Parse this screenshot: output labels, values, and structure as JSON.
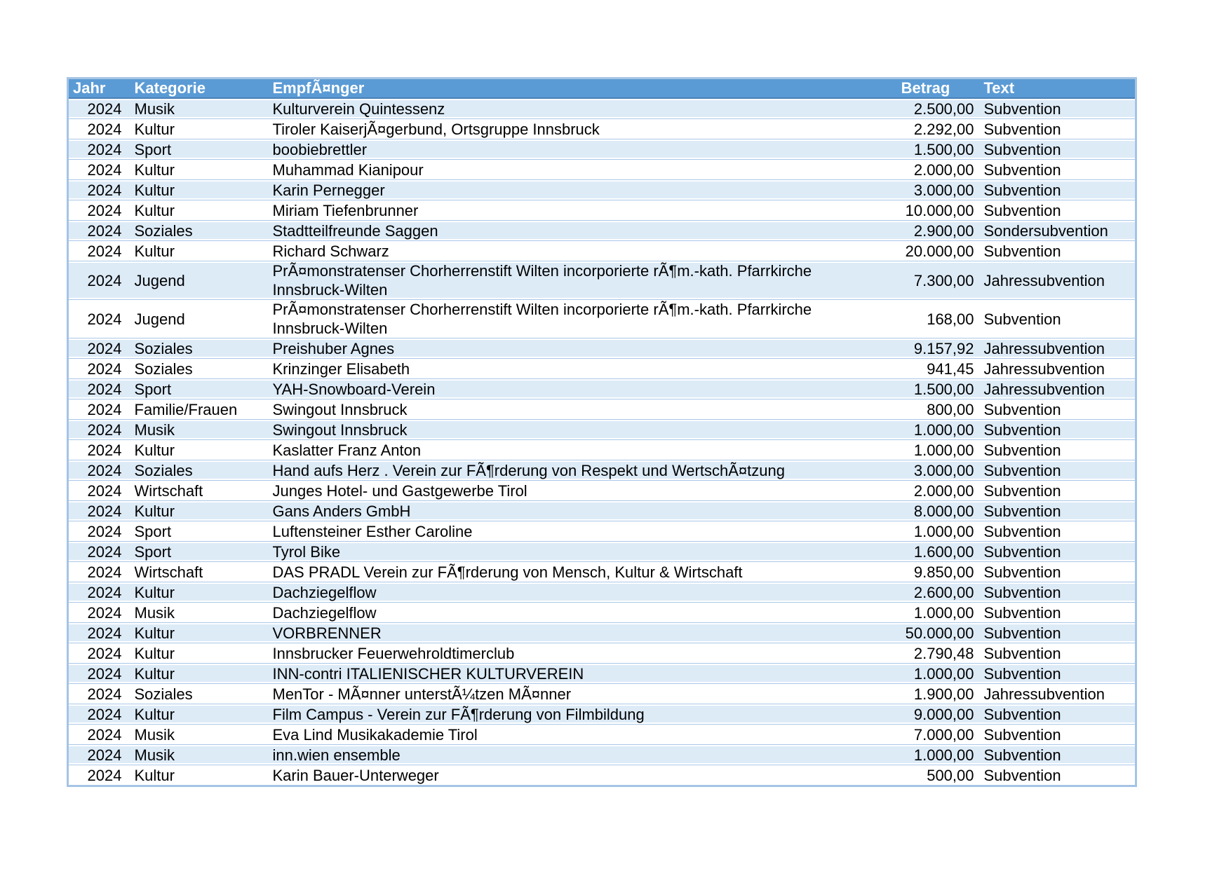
{
  "table": {
    "columns": [
      {
        "key": "jahr",
        "label": "Jahr"
      },
      {
        "key": "kategorie",
        "label": "Kategorie"
      },
      {
        "key": "empfaenger",
        "label": "EmpfÃ¤nger"
      },
      {
        "key": "betrag",
        "label": "Betrag"
      },
      {
        "key": "text",
        "label": "Text"
      }
    ],
    "rows": [
      {
        "jahr": "2024",
        "kategorie": "Musik",
        "empfaenger": "Kulturverein Quintessenz",
        "betrag": "2.500,00",
        "text": "Subvention"
      },
      {
        "jahr": "2024",
        "kategorie": "Kultur",
        "empfaenger": "Tiroler KaiserjÃ¤gerbund, Ortsgruppe Innsbruck",
        "betrag": "2.292,00",
        "text": "Subvention"
      },
      {
        "jahr": "2024",
        "kategorie": "Sport",
        "empfaenger": "boobiebrettler",
        "betrag": "1.500,00",
        "text": "Subvention"
      },
      {
        "jahr": "2024",
        "kategorie": "Kultur",
        "empfaenger": "Muhammad Kianipour",
        "betrag": "2.000,00",
        "text": "Subvention"
      },
      {
        "jahr": "2024",
        "kategorie": "Kultur",
        "empfaenger": "Karin Pernegger",
        "betrag": "3.000,00",
        "text": "Subvention"
      },
      {
        "jahr": "2024",
        "kategorie": "Kultur",
        "empfaenger": "Miriam Tiefenbrunner",
        "betrag": "10.000,00",
        "text": "Subvention"
      },
      {
        "jahr": "2024",
        "kategorie": "Soziales",
        "empfaenger": "Stadtteilfreunde Saggen",
        "betrag": "2.900,00",
        "text": "Sondersubvention"
      },
      {
        "jahr": "2024",
        "kategorie": "Kultur",
        "empfaenger": "Richard Schwarz",
        "betrag": "20.000,00",
        "text": "Subvention"
      },
      {
        "jahr": "2024",
        "kategorie": "Jugend",
        "empfaenger": "PrÃ¤monstratenser Chorherrenstift Wilten incorporierte rÃ¶m.-kath. Pfarrkirche Innsbruck-Wilten",
        "betrag": "7.300,00",
        "text": "Jahressubvention"
      },
      {
        "jahr": "2024",
        "kategorie": "Jugend",
        "empfaenger": "PrÃ¤monstratenser Chorherrenstift Wilten incorporierte rÃ¶m.-kath. Pfarrkirche Innsbruck-Wilten",
        "betrag": "168,00",
        "text": "Subvention"
      },
      {
        "jahr": "2024",
        "kategorie": "Soziales",
        "empfaenger": "Preishuber Agnes",
        "betrag": "9.157,92",
        "text": "Jahressubvention"
      },
      {
        "jahr": "2024",
        "kategorie": "Soziales",
        "empfaenger": "Krinzinger Elisabeth",
        "betrag": "941,45",
        "text": "Jahressubvention"
      },
      {
        "jahr": "2024",
        "kategorie": "Sport",
        "empfaenger": "YAH-Snowboard-Verein",
        "betrag": "1.500,00",
        "text": "Jahressubvention"
      },
      {
        "jahr": "2024",
        "kategorie": "Familie/Frauen",
        "empfaenger": "Swingout Innsbruck",
        "betrag": "800,00",
        "text": "Subvention"
      },
      {
        "jahr": "2024",
        "kategorie": "Musik",
        "empfaenger": "Swingout Innsbruck",
        "betrag": "1.000,00",
        "text": "Subvention"
      },
      {
        "jahr": "2024",
        "kategorie": "Kultur",
        "empfaenger": "Kaslatter Franz Anton",
        "betrag": "1.000,00",
        "text": "Subvention"
      },
      {
        "jahr": "2024",
        "kategorie": "Soziales",
        "empfaenger": "Hand aufs Herz . Verein zur FÃ¶rderung von Respekt und WertschÃ¤tzung",
        "betrag": "3.000,00",
        "text": "Subvention"
      },
      {
        "jahr": "2024",
        "kategorie": "Wirtschaft",
        "empfaenger": "Junges Hotel- und Gastgewerbe Tirol",
        "betrag": "2.000,00",
        "text": "Subvention"
      },
      {
        "jahr": "2024",
        "kategorie": "Kultur",
        "empfaenger": "Gans Anders GmbH",
        "betrag": "8.000,00",
        "text": "Subvention"
      },
      {
        "jahr": "2024",
        "kategorie": "Sport",
        "empfaenger": "Luftensteiner Esther Caroline",
        "betrag": "1.000,00",
        "text": "Subvention"
      },
      {
        "jahr": "2024",
        "kategorie": "Sport",
        "empfaenger": "Tyrol Bike",
        "betrag": "1.600,00",
        "text": "Subvention"
      },
      {
        "jahr": "2024",
        "kategorie": "Wirtschaft",
        "empfaenger": "DAS PRADL Verein zur FÃ¶rderung von Mensch, Kultur & Wirtschaft",
        "betrag": "9.850,00",
        "text": "Subvention"
      },
      {
        "jahr": "2024",
        "kategorie": "Kultur",
        "empfaenger": "Dachziegelflow",
        "betrag": "2.600,00",
        "text": "Subvention"
      },
      {
        "jahr": "2024",
        "kategorie": "Musik",
        "empfaenger": "Dachziegelflow",
        "betrag": "1.000,00",
        "text": "Subvention"
      },
      {
        "jahr": "2024",
        "kategorie": "Kultur",
        "empfaenger": "VORBRENNER",
        "betrag": "50.000,00",
        "text": "Subvention"
      },
      {
        "jahr": "2024",
        "kategorie": "Kultur",
        "empfaenger": "Innsbrucker Feuerwehroldtimerclub",
        "betrag": "2.790,48",
        "text": "Subvention"
      },
      {
        "jahr": "2024",
        "kategorie": "Kultur",
        "empfaenger": "INN-contri ITALIENISCHER KULTURVEREIN",
        "betrag": "1.000,00",
        "text": "Subvention"
      },
      {
        "jahr": "2024",
        "kategorie": "Soziales",
        "empfaenger": "MenTor - MÃ¤nner unterstÃ¼tzen MÃ¤nner",
        "betrag": "1.900,00",
        "text": "Jahressubvention"
      },
      {
        "jahr": "2024",
        "kategorie": "Kultur",
        "empfaenger": "Film Campus - Verein zur FÃ¶rderung von Filmbildung",
        "betrag": "9.000,00",
        "text": "Subvention"
      },
      {
        "jahr": "2024",
        "kategorie": "Musik",
        "empfaenger": "Eva Lind Musikakademie Tirol",
        "betrag": "7.000,00",
        "text": "Subvention"
      },
      {
        "jahr": "2024",
        "kategorie": "Musik",
        "empfaenger": "inn.wien ensemble",
        "betrag": "1.000,00",
        "text": "Subvention"
      },
      {
        "jahr": "2024",
        "kategorie": "Kultur",
        "empfaenger": "Karin Bauer-Unterweger",
        "betrag": "500,00",
        "text": "Subvention"
      }
    ],
    "colors": {
      "header_bg": "#5B9BD5",
      "header_text": "#FFFFFF",
      "header_edge": "#4A80B8",
      "band_row_bg": "#DDEBF7",
      "row_bg": "#FFFFFF",
      "outer_border": "#A5C4E4",
      "row_line": "#A9C7E8"
    }
  }
}
